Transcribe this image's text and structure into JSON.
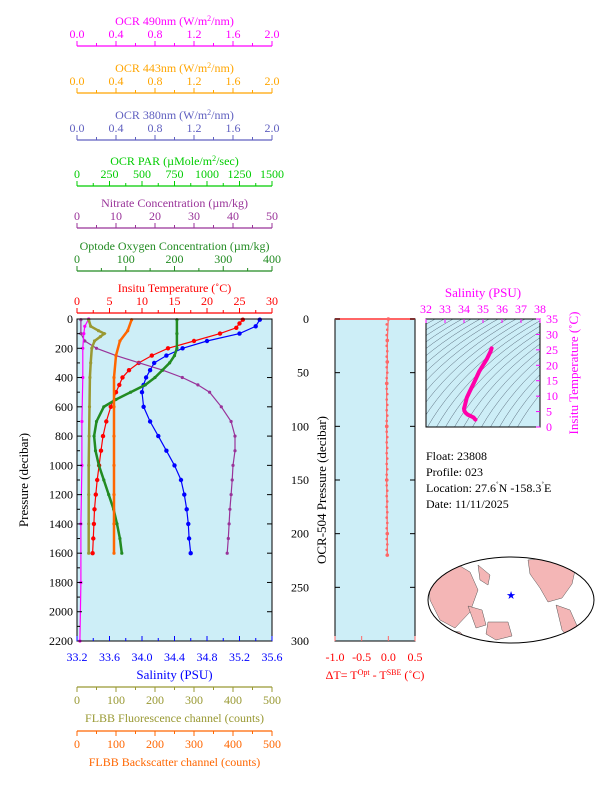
{
  "colors": {
    "ocr490": "#ff00ff",
    "ocr443": "#ffa500",
    "ocr380": "#6060c0",
    "par": "#00cc00",
    "nitrate": "#993399",
    "oxygen": "#228b22",
    "temperature": "#ff0000",
    "salinity": "#0000ff",
    "fluorescence": "#999933",
    "backscatter": "#ff6600",
    "panel_bg": "#cdeef7",
    "dt_line": "#ff6666",
    "ts_line": "#ff00aa",
    "contour": "#556677",
    "land": "#f4b6b6",
    "ocean": "#ffffff"
  },
  "top_axes": [
    {
      "key": "ocr490",
      "label_pre": "OCR 490nm (W/m",
      "label_sup": "2",
      "label_post": "/nm)",
      "ticks": [
        "0.0",
        "0.4",
        "0.8",
        "1.2",
        "1.6",
        "2.0"
      ],
      "color": "ocr490"
    },
    {
      "key": "ocr443",
      "label_pre": "OCR 443nm (W/m",
      "label_sup": "2",
      "label_post": "/nm)",
      "ticks": [
        "0.0",
        "0.4",
        "0.8",
        "1.2",
        "1.6",
        "2.0"
      ],
      "color": "ocr443"
    },
    {
      "key": "ocr380",
      "label_pre": "OCR 380nm (W/m",
      "label_sup": "2",
      "label_post": "/nm)",
      "ticks": [
        "0.0",
        "0.4",
        "0.8",
        "1.2",
        "1.6",
        "2.0"
      ],
      "color": "ocr380"
    },
    {
      "key": "par",
      "label_pre": "OCR PAR (µMole/m",
      "label_sup": "2",
      "label_post": "/sec)",
      "ticks": [
        "0",
        "250",
        "500",
        "750",
        "1000",
        "1250",
        "1500"
      ],
      "color": "par"
    },
    {
      "key": "nitrate",
      "label_pre": "Nitrate Concentration (µm/kg)",
      "label_sup": "",
      "label_post": "",
      "ticks": [
        "0",
        "10",
        "20",
        "30",
        "40",
        "50"
      ],
      "color": "nitrate"
    },
    {
      "key": "oxygen",
      "label_pre": "Optode Oxygen Concentration (µm/kg)",
      "label_sup": "",
      "label_post": "",
      "ticks": [
        "0",
        "100",
        "200",
        "300",
        "400"
      ],
      "color": "oxygen"
    },
    {
      "key": "temperature",
      "label_pre": "Insitu Temperature (˚C)",
      "label_sup": "",
      "label_post": "",
      "ticks": [
        "0",
        "5",
        "10",
        "15",
        "20",
        "25",
        "30"
      ],
      "color": "temperature"
    }
  ],
  "bottom_axes": [
    {
      "key": "fluorescence",
      "label": "FLBB Fluorescence channel (counts)",
      "ticks": [
        "0",
        "100",
        "200",
        "300",
        "400",
        "500"
      ],
      "color": "fluorescence"
    },
    {
      "key": "backscatter",
      "label": "FLBB Backscatter channel (counts)",
      "ticks": [
        "0",
        "100",
        "200",
        "300",
        "400",
        "500"
      ],
      "color": "backscatter"
    }
  ],
  "chart_data": [
    {
      "type": "line",
      "ylabel": "Pressure (decibar)",
      "ylim": [
        2200,
        0
      ],
      "yticks": [
        "0",
        "200",
        "400",
        "600",
        "800",
        "1000",
        "1200",
        "1400",
        "1600",
        "1800",
        "2000",
        "2200"
      ],
      "xlabel": "Salinity (PSU)",
      "xticks": [
        "33.2",
        "33.6",
        "34.0",
        "34.4",
        "34.8",
        "35.2",
        "35.6"
      ],
      "series": [
        {
          "name": "Insitu Temperature (˚C)",
          "key": "temperature",
          "xlim": [
            0,
            30
          ],
          "points": [
            [
              25.5,
              5
            ],
            [
              25,
              30
            ],
            [
              24.5,
              60
            ],
            [
              22,
              100
            ],
            [
              18,
              150
            ],
            [
              14,
              200
            ],
            [
              11.5,
              250
            ],
            [
              9.5,
              300
            ],
            [
              8,
              350
            ],
            [
              7,
              400
            ],
            [
              6.5,
              450
            ],
            [
              6,
              500
            ],
            [
              5.2,
              600
            ],
            [
              4.5,
              700
            ],
            [
              4,
              800
            ],
            [
              3.7,
              900
            ],
            [
              3.4,
              1000
            ],
            [
              3.1,
              1100
            ],
            [
              2.9,
              1200
            ],
            [
              2.7,
              1300
            ],
            [
              2.6,
              1400
            ],
            [
              2.5,
              1500
            ],
            [
              2.4,
              1600
            ]
          ]
        },
        {
          "name": "Salinity (PSU)",
          "key": "salinity",
          "xlim": [
            33.2,
            35.6
          ],
          "points": [
            [
              35.45,
              5
            ],
            [
              35.4,
              50
            ],
            [
              35.2,
              100
            ],
            [
              34.8,
              150
            ],
            [
              34.5,
              200
            ],
            [
              34.3,
              250
            ],
            [
              34.15,
              300
            ],
            [
              34.1,
              350
            ],
            [
              34.05,
              400
            ],
            [
              34.02,
              450
            ],
            [
              34.0,
              500
            ],
            [
              34.02,
              600
            ],
            [
              34.1,
              700
            ],
            [
              34.2,
              800
            ],
            [
              34.3,
              900
            ],
            [
              34.4,
              1000
            ],
            [
              34.48,
              1100
            ],
            [
              34.52,
              1200
            ],
            [
              34.55,
              1300
            ],
            [
              34.57,
              1400
            ],
            [
              34.58,
              1500
            ],
            [
              34.6,
              1600
            ]
          ]
        },
        {
          "name": "Nitrate Concentration (µm/kg)",
          "key": "nitrate",
          "xlim": [
            0,
            50
          ],
          "points": [
            [
              1,
              5
            ],
            [
              1,
              100
            ],
            [
              2,
              150
            ],
            [
              5,
              200
            ],
            [
              10,
              250
            ],
            [
              16,
              300
            ],
            [
              22,
              350
            ],
            [
              27,
              400
            ],
            [
              31,
              450
            ],
            [
              34,
              500
            ],
            [
              37,
              600
            ],
            [
              39.5,
              700
            ],
            [
              40.5,
              800
            ],
            [
              40.5,
              900
            ],
            [
              40,
              1000
            ],
            [
              39.8,
              1100
            ],
            [
              39.5,
              1200
            ],
            [
              39.2,
              1300
            ],
            [
              39,
              1400
            ],
            [
              38.8,
              1500
            ],
            [
              38.5,
              1600
            ]
          ]
        },
        {
          "name": "Optode Oxygen Concentration (µm/kg)",
          "key": "oxygen",
          "xlim": [
            0,
            400
          ],
          "points": [
            [
              205,
              5
            ],
            [
              205,
              100
            ],
            [
              205,
              200
            ],
            [
              200,
              250
            ],
            [
              190,
              300
            ],
            [
              175,
              350
            ],
            [
              160,
              400
            ],
            [
              140,
              450
            ],
            [
              110,
              500
            ],
            [
              80,
              550
            ],
            [
              55,
              600
            ],
            [
              40,
              700
            ],
            [
              35,
              800
            ],
            [
              38,
              900
            ],
            [
              45,
              1000
            ],
            [
              55,
              1100
            ],
            [
              65,
              1200
            ],
            [
              75,
              1300
            ],
            [
              82,
              1400
            ],
            [
              88,
              1500
            ],
            [
              92,
              1600
            ]
          ]
        },
        {
          "name": "OCR 490nm (W/m2/nm)",
          "key": "ocr490",
          "xlim": [
            0,
            2
          ],
          "points": [
            [
              0.12,
              0
            ],
            [
              0.08,
              50
            ],
            [
              0.07,
              100
            ],
            [
              0.06,
              200
            ],
            [
              0.06,
              400
            ],
            [
              0.05,
              700
            ],
            [
              0.05,
              1000
            ],
            [
              0.04,
              1400
            ],
            [
              0.04,
              1800
            ],
            [
              0.03,
              2200
            ]
          ]
        },
        {
          "name": "FLBB Fluorescence channel (counts)",
          "key": "fluorescence",
          "xlim": [
            0,
            500
          ],
          "points": [
            [
              30,
              5
            ],
            [
              35,
              50
            ],
            [
              55,
              80
            ],
            [
              70,
              100
            ],
            [
              60,
              120
            ],
            [
              45,
              150
            ],
            [
              38,
              200
            ],
            [
              35,
              300
            ],
            [
              33,
              400
            ],
            [
              32,
              600
            ],
            [
              31,
              800
            ],
            [
              30,
              1000
            ],
            [
              30,
              1200
            ],
            [
              30,
              1400
            ],
            [
              30,
              1600
            ]
          ]
        },
        {
          "name": "FLBB Backscatter channel (counts)",
          "key": "backscatter",
          "xlim": [
            0,
            500
          ],
          "points": [
            [
              140,
              5
            ],
            [
              130,
              80
            ],
            [
              110,
              150
            ],
            [
              100,
              250
            ],
            [
              95,
              400
            ],
            [
              95,
              600
            ],
            [
              95,
              800
            ],
            [
              95,
              1000
            ],
            [
              95,
              1200
            ],
            [
              95,
              1400
            ],
            [
              95,
              1600
            ]
          ]
        }
      ]
    },
    {
      "type": "line",
      "ylabel": "OCR-504 Pressure (decibar)",
      "ylim": [
        300,
        0
      ],
      "yticks": [
        "0",
        "50",
        "100",
        "150",
        "200",
        "250",
        "300"
      ],
      "xlim": [
        -1.0,
        0.5
      ],
      "xticks": [
        "-1.0",
        "-0.5",
        "0.0",
        "0.5"
      ],
      "xlabel_pre": "ΔT= T",
      "xlabel_sup1": "Opt",
      "xlabel_mid": " - T",
      "xlabel_sup2": "SBE",
      "xlabel_post": " (˚C)",
      "series": [
        {
          "key": "dt",
          "points": [
            [
              0.0,
              0
            ],
            [
              -0.02,
              20
            ],
            [
              -0.02,
              40
            ],
            [
              -0.03,
              60
            ],
            [
              -0.03,
              100
            ],
            [
              -0.03,
              150
            ],
            [
              -0.02,
              200
            ],
            [
              -0.02,
              220
            ]
          ]
        }
      ]
    },
    {
      "type": "scatter",
      "xlabel": "Salinity (PSU)",
      "ylabel": "Insitu Temperature (˚C)",
      "xlim": [
        32,
        38
      ],
      "ylim": [
        0,
        35
      ],
      "xticks": [
        "32",
        "33",
        "34",
        "35",
        "36",
        "37",
        "38"
      ],
      "yticks": [
        "0",
        "5",
        "10",
        "15",
        "20",
        "25",
        "30",
        "35"
      ],
      "series": [
        {
          "key": "ts",
          "points": [
            [
              35.45,
              25.5
            ],
            [
              35.4,
              24.5
            ],
            [
              35.2,
              22
            ],
            [
              34.8,
              18
            ],
            [
              34.5,
              14
            ],
            [
              34.3,
              11.5
            ],
            [
              34.15,
              9.5
            ],
            [
              34.05,
              7
            ],
            [
              34.0,
              6
            ],
            [
              34.02,
              5.2
            ],
            [
              34.1,
              4.5
            ],
            [
              34.2,
              4
            ],
            [
              34.3,
              3.7
            ],
            [
              34.4,
              3.4
            ],
            [
              34.5,
              3.1
            ],
            [
              34.57,
              2.6
            ],
            [
              34.6,
              2.4
            ]
          ]
        }
      ]
    }
  ],
  "info": {
    "float": "Float:  23808",
    "profile": "Profile:  023",
    "location_pre": "Location:  27.6",
    "location_mid": "N  -158.3",
    "location_post": "E",
    "deg": "˚",
    "date": "Date:  11/11/2025"
  },
  "map_marker": "★"
}
